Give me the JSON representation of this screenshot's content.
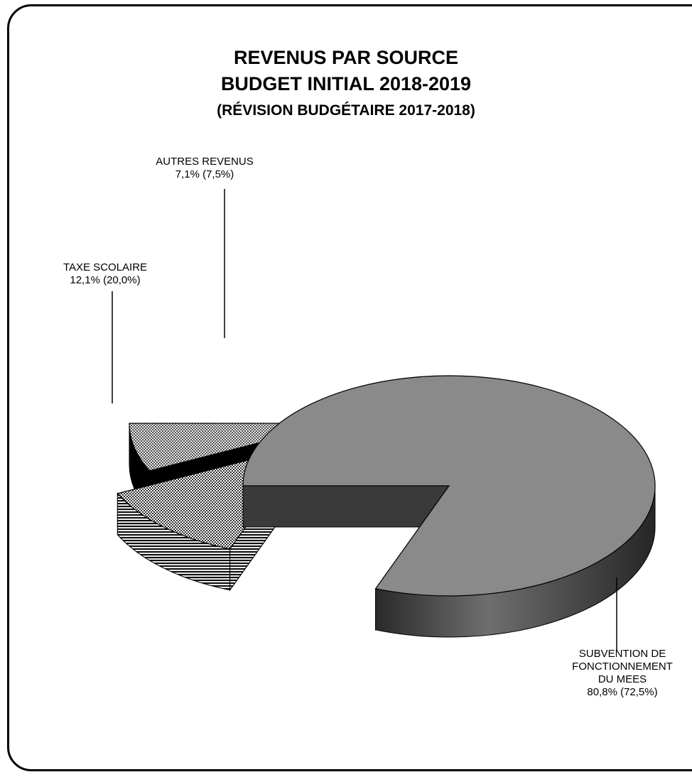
{
  "chart_data": {
    "type": "pie",
    "title": "REVENUS PAR SOURCE",
    "subtitle": "BUDGET INITIAL 2018-2019",
    "subtitle2": "(RÉVISION BUDGÉTAIRE 2017-2018)",
    "three_d": true,
    "exploded": true,
    "slices": [
      {
        "label_lines": [
          "SUBVENTION DE",
          "FONCTIONNEMENT",
          "DU MEES"
        ],
        "value": 80.8,
        "value_text": "80,8% (72,5%)",
        "previous_value": 72.5,
        "color": "#888888",
        "side_color": "#3a3a3a",
        "pattern": "solid"
      },
      {
        "label_lines": [
          "TAXE SCOLAIRE"
        ],
        "value": 12.1,
        "value_text": "12,1% (20,0%)",
        "previous_value": 20.0,
        "color": "#9a9a9a",
        "side_color": "#222222",
        "pattern": "dots-horizontal-stripes"
      },
      {
        "label_lines": [
          "AUTRES REVENUS"
        ],
        "value": 7.1,
        "value_text": "7,1% (7,5%)",
        "previous_value": 7.5,
        "color": "#7a7a7a",
        "side_color": "#000000",
        "pattern": "dots-solid"
      }
    ]
  }
}
